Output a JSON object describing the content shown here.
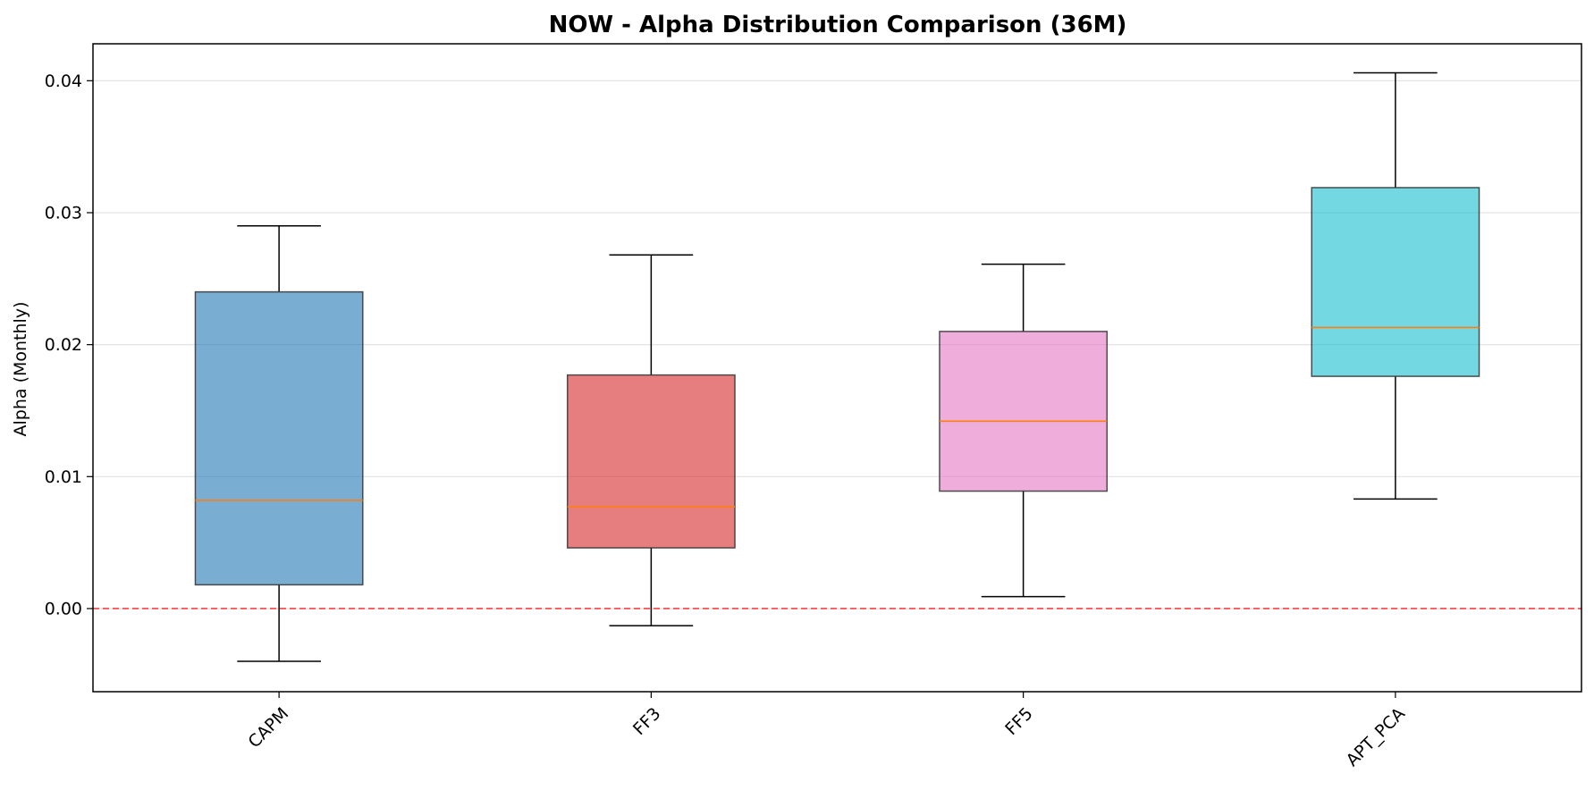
{
  "chart_data": {
    "type": "box",
    "title": "NOW - Alpha Distribution Comparison (36M)",
    "xlabel": "",
    "ylabel": "Alpha (Monthly)",
    "ylim": [
      -0.0063,
      0.0428
    ],
    "yticks": [
      0.0,
      0.01,
      0.02,
      0.03,
      0.04
    ],
    "ytick_labels": [
      "0.00",
      "0.01",
      "0.02",
      "0.03",
      "0.04"
    ],
    "categories": [
      "CAPM",
      "FF3",
      "FF5",
      "APT_PCA"
    ],
    "boxes": [
      {
        "label": "CAPM",
        "whisker_low": -0.004,
        "q1": 0.0018,
        "median": 0.0082,
        "q3": 0.024,
        "whisker_high": 0.029,
        "color": "#1f77b4"
      },
      {
        "label": "FF3",
        "whisker_low": -0.0013,
        "q1": 0.0046,
        "median": 0.0077,
        "q3": 0.0177,
        "whisker_high": 0.0268,
        "color": "#d62728"
      },
      {
        "label": "FF5",
        "whisker_low": 0.0009,
        "q1": 0.0089,
        "median": 0.0142,
        "q3": 0.021,
        "whisker_high": 0.0261,
        "color": "#e377c2"
      },
      {
        "label": "APT_PCA",
        "whisker_low": 0.0083,
        "q1": 0.0176,
        "median": 0.0213,
        "q3": 0.0319,
        "whisker_high": 0.0406,
        "color": "#17becf"
      }
    ],
    "reference_line": {
      "y": 0.0,
      "color": "#ff0000",
      "style": "dashed"
    },
    "median_color": "#ff7f0e",
    "grid": "y-only",
    "legend": "none"
  }
}
